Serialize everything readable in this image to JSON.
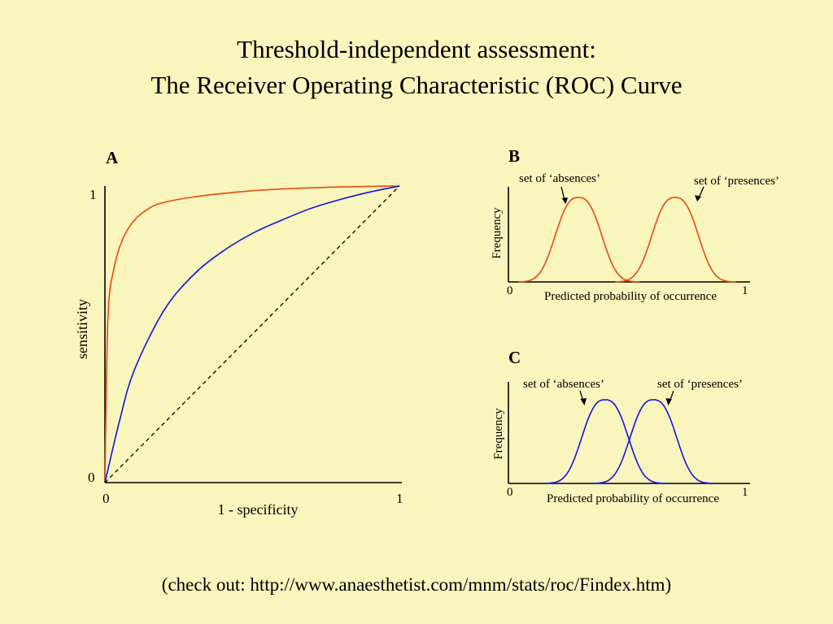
{
  "title": {
    "line1": "Threshold-independent assessment:",
    "line2": "The Receiver Operating Characteristic (ROC) Curve"
  },
  "panel_a": {
    "label": "A",
    "ylabel": "sensitivity",
    "xlabel": "1 - specificity",
    "y_tick_top": "1",
    "y_tick_bottom": "0",
    "x_tick_left": "0",
    "x_tick_right": "1"
  },
  "panel_b": {
    "label": "B",
    "ylabel": "Frequency",
    "xlabel": "Predicted probability of occurrence",
    "x_tick_left": "0",
    "x_tick_right": "1",
    "annot_absences": "set of ‘absences’",
    "annot_presences": "set of ‘presences’"
  },
  "panel_c": {
    "label": "C",
    "ylabel": "Frequency",
    "xlabel": "Predicted probability of occurrence",
    "x_tick_left": "0",
    "x_tick_right": "1",
    "annot_absences": "set of ‘absences’",
    "annot_presences": "set of ‘presences’"
  },
  "footer": "(check out: http://www.anaesthetist.com/mnm/stats/roc/Findex.htm)",
  "colors": {
    "background": "#f8f5bd",
    "good_model": "#e84a10",
    "weak_model": "#1414e0",
    "random": "#000000"
  },
  "chart_data": [
    {
      "type": "line",
      "panel": "A",
      "xlabel": "1 - specificity",
      "ylabel": "sensitivity",
      "xlim": [
        0,
        1
      ],
      "ylim": [
        0,
        1
      ],
      "series": [
        {
          "color": "#e84a10",
          "x": [
            0,
            0.01,
            0.03,
            0.06,
            0.1,
            0.15,
            0.2,
            0.3,
            0.4,
            0.5,
            0.6,
            0.7,
            0.8,
            0.9,
            1
          ],
          "y": [
            0,
            0.55,
            0.72,
            0.82,
            0.885,
            0.925,
            0.945,
            0.963,
            0.975,
            0.984,
            0.99,
            0.994,
            0.997,
            0.999,
            1
          ]
        },
        {
          "color": "#1414e0",
          "x": [
            0,
            0.05,
            0.1,
            0.2,
            0.3,
            0.4,
            0.5,
            0.6,
            0.7,
            0.8,
            0.9,
            1
          ],
          "y": [
            0,
            0.21,
            0.38,
            0.58,
            0.7,
            0.78,
            0.84,
            0.885,
            0.925,
            0.955,
            0.98,
            1
          ]
        },
        {
          "color": "#000000",
          "dashed": true,
          "x": [
            0,
            1
          ],
          "y": [
            0,
            1
          ]
        }
      ]
    },
    {
      "type": "line",
      "panel": "B",
      "xlabel": "Predicted probability of occurrence",
      "ylabel": "Frequency",
      "xlim": [
        0,
        1
      ],
      "series": [
        {
          "color": "#e84a10",
          "center": 0.29,
          "spread": 0.09
        },
        {
          "color": "#e84a10",
          "center": 0.69,
          "spread": 0.09
        }
      ]
    },
    {
      "type": "line",
      "panel": "C",
      "xlabel": "Predicted probability of occurrence",
      "ylabel": "Frequency",
      "xlim": [
        0,
        1
      ],
      "series": [
        {
          "color": "#1414e0",
          "center": 0.4,
          "spread": 0.09
        },
        {
          "color": "#1414e0",
          "center": 0.6,
          "spread": 0.09
        }
      ]
    }
  ]
}
